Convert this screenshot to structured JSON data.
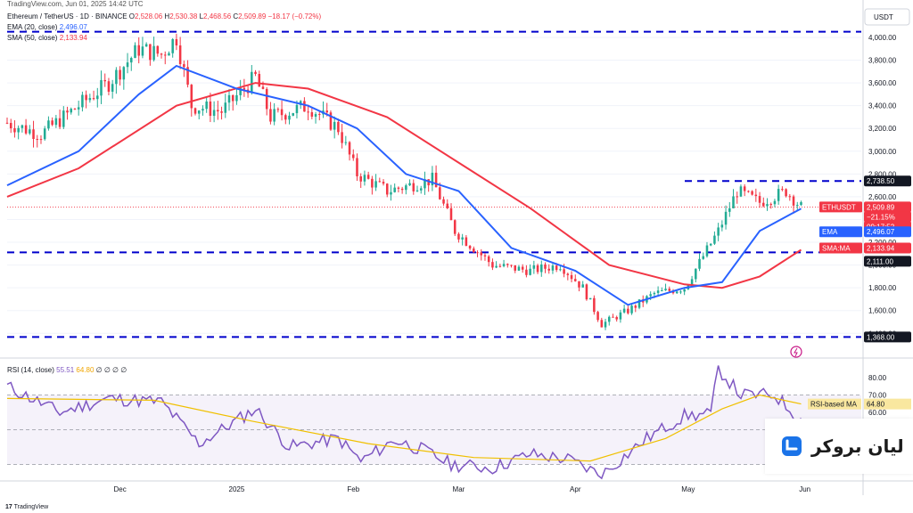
{
  "header": {
    "published": "TradingView.com, Jun 01, 2025 14:42 UTC",
    "symbol_line": "Ethereum / TetherUS · 1D · BINANCE",
    "ohlc": {
      "o_label": "O",
      "o": "2,528.06",
      "h_label": "H",
      "h": "2,530.38",
      "l_label": "L",
      "l": "2,468.56",
      "c_label": "C",
      "c": "2,509.89",
      "change": "−18.17 (−0.72%)"
    },
    "ema_label": "EMA (20, close)",
    "ema_value": "2,496.07",
    "sma_label": "SMA (50, close)",
    "sma_value": "2,133.94"
  },
  "currency": "USDT",
  "rsi_legend": {
    "label": "RSI (14, close)",
    "value1": "55.51",
    "value2": "64.80",
    "empties": "∅ ∅ ∅ ∅"
  },
  "price_axis": {
    "ticks": [
      "4,000.00",
      "3,800.00",
      "3,600.00",
      "3,400.00",
      "3,200.00",
      "3,000.00",
      "2,800.00",
      "2,600.00",
      "2,400.00",
      "2,200.00",
      "2,000.00",
      "1,800.00",
      "1,600.00",
      "1,400.00"
    ]
  },
  "rsi_axis": {
    "ticks": [
      "80.00",
      "70.00",
      "60.00"
    ]
  },
  "time_axis": {
    "labels": [
      "Dec",
      "2025",
      "Feb",
      "Mar",
      "Apr",
      "May",
      "Jun"
    ]
  },
  "price_badges": {
    "resistance_high": "2,738.50",
    "last_price_label": "ETHUSDT",
    "last_price": "2,509.89",
    "last_change": "−21.15%",
    "countdown": "09:17:52",
    "ema_label": "EMA",
    "ema_value": "2,496.07",
    "sma_label": "SMA:MA",
    "sma_value": "2,133.94",
    "support_mid": "2,111.00",
    "support_low": "1,368.00",
    "rsi_ma_label": "RSI-based MA",
    "rsi_ma_value": "64.80",
    "rsi_value": "60.00"
  },
  "colors": {
    "up": "#22ab94",
    "down": "#f23645",
    "ema": "#2962ff",
    "sma": "#f23645",
    "rsi": "#7e57c2",
    "rsi_ma": "#f0c000",
    "level": "#0000cc"
  },
  "brand": {
    "name": "لیان بروکر",
    "icon": "lian-broker-logo"
  },
  "footer": {
    "tradingview": "TradingView"
  },
  "chart_data": {
    "type": "candlestick",
    "title": "Ethereum / TetherUS · 1D · BINANCE",
    "ylim": [
      1300,
      4100
    ],
    "series_keypoints": {
      "close": [
        [
          "2024-11-01",
          3250
        ],
        [
          "2024-11-10",
          3150
        ],
        [
          "2024-11-20",
          3400
        ],
        [
          "2024-11-28",
          3600
        ],
        [
          "2024-12-06",
          3900
        ],
        [
          "2024-12-12",
          3850
        ],
        [
          "2024-12-16",
          4000
        ],
        [
          "2024-12-20",
          3400
        ],
        [
          "2024-12-28",
          3350
        ],
        [
          "2025-01-06",
          3650
        ],
        [
          "2025-01-10",
          3300
        ],
        [
          "2025-01-20",
          3400
        ],
        [
          "2025-01-28",
          3200
        ],
        [
          "2025-02-02",
          2800
        ],
        [
          "2025-02-10",
          2650
        ],
        [
          "2025-02-22",
          2750
        ],
        [
          "2025-02-28",
          2300
        ],
        [
          "2025-03-10",
          2000
        ],
        [
          "2025-03-20",
          1950
        ],
        [
          "2025-03-28",
          2000
        ],
        [
          "2025-04-03",
          1800
        ],
        [
          "2025-04-08",
          1480
        ],
        [
          "2025-04-15",
          1600
        ],
        [
          "2025-04-22",
          1750
        ],
        [
          "2025-04-30",
          1800
        ],
        [
          "2025-05-09",
          2300
        ],
        [
          "2025-05-14",
          2650
        ],
        [
          "2025-05-20",
          2550
        ],
        [
          "2025-05-27",
          2650
        ],
        [
          "2025-05-31",
          2510
        ]
      ],
      "ema20": [
        [
          "2024-11-01",
          2700
        ],
        [
          "2024-11-20",
          3000
        ],
        [
          "2024-12-06",
          3500
        ],
        [
          "2024-12-16",
          3750
        ],
        [
          "2025-01-01",
          3550
        ],
        [
          "2025-01-20",
          3400
        ],
        [
          "2025-02-02",
          3200
        ],
        [
          "2025-02-15",
          2800
        ],
        [
          "2025-03-01",
          2650
        ],
        [
          "2025-03-15",
          2150
        ],
        [
          "2025-04-01",
          1950
        ],
        [
          "2025-04-15",
          1650
        ],
        [
          "2025-04-30",
          1800
        ],
        [
          "2025-05-10",
          1850
        ],
        [
          "2025-05-20",
          2300
        ],
        [
          "2025-05-31",
          2496.07
        ]
      ],
      "sma50": [
        [
          "2024-11-01",
          2600
        ],
        [
          "2024-11-20",
          2850
        ],
        [
          "2024-12-16",
          3400
        ],
        [
          "2025-01-06",
          3600
        ],
        [
          "2025-01-20",
          3550
        ],
        [
          "2025-02-10",
          3300
        ],
        [
          "2025-03-01",
          2900
        ],
        [
          "2025-03-20",
          2500
        ],
        [
          "2025-04-10",
          2000
        ],
        [
          "2025-04-30",
          1830
        ],
        [
          "2025-05-10",
          1800
        ],
        [
          "2025-05-20",
          1900
        ],
        [
          "2025-05-31",
          2133.94
        ]
      ]
    },
    "rsi": {
      "ylim": [
        20,
        90
      ],
      "bands": [
        70,
        30
      ],
      "keypoints": [
        [
          "2024-11-01",
          75
        ],
        [
          "2024-11-15",
          60
        ],
        [
          "2024-11-28",
          68
        ],
        [
          "2024-12-12",
          66
        ],
        [
          "2024-12-22",
          42
        ],
        [
          "2025-01-06",
          62
        ],
        [
          "2025-01-15",
          40
        ],
        [
          "2025-01-28",
          45
        ],
        [
          "2025-02-03",
          32
        ],
        [
          "2025-02-12",
          44
        ],
        [
          "2025-02-20",
          38
        ],
        [
          "2025-02-27",
          30
        ],
        [
          "2025-03-10",
          28
        ],
        [
          "2025-03-20",
          36
        ],
        [
          "2025-03-30",
          33
        ],
        [
          "2025-04-08",
          24
        ],
        [
          "2025-04-20",
          45
        ],
        [
          "2025-04-30",
          58
        ],
        [
          "2025-05-07",
          59
        ],
        [
          "2025-05-09",
          85
        ],
        [
          "2025-05-15",
          70
        ],
        [
          "2025-05-24",
          70
        ],
        [
          "2025-05-31",
          55.51
        ]
      ],
      "rsi_ma_keypoints": [
        [
          "2024-11-01",
          68
        ],
        [
          "2024-12-10",
          67
        ],
        [
          "2025-01-05",
          55
        ],
        [
          "2025-02-05",
          42
        ],
        [
          "2025-03-05",
          34
        ],
        [
          "2025-04-05",
          32
        ],
        [
          "2025-04-25",
          45
        ],
        [
          "2025-05-10",
          62
        ],
        [
          "2025-05-20",
          70
        ],
        [
          "2025-05-31",
          64.8
        ]
      ]
    },
    "horizontal_levels": [
      4050,
      2738.5,
      2111,
      1368
    ],
    "x_range": [
      "2024-11-01",
      "2025-06-16"
    ]
  }
}
